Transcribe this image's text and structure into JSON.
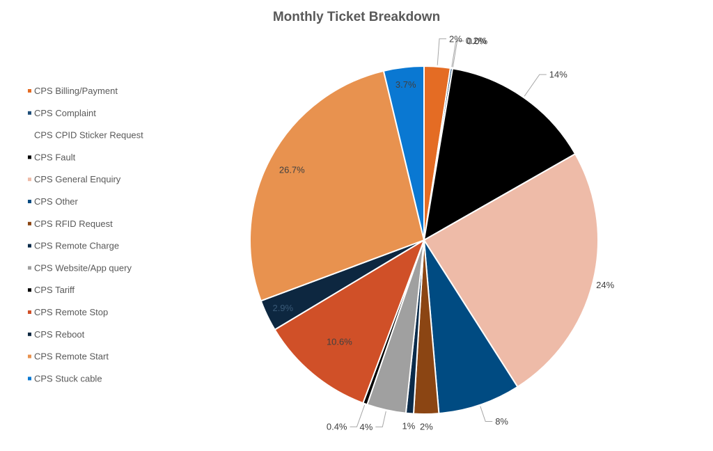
{
  "chart_data": {
    "type": "pie",
    "title": "Monthly Ticket Breakdown",
    "legend_position": "left",
    "slices": [
      {
        "name": "CPS Billing/Payment",
        "value": 2.4,
        "label": "2%",
        "color": "#E46C24"
      },
      {
        "name": "CPS Complaint",
        "value": 0.2,
        "label": "0.2%",
        "color": "#1F4E79"
      },
      {
        "name": "CPS CPID Sticker Request",
        "value": 0.0,
        "label": "0.0%",
        "color": "#FFFFFF"
      },
      {
        "name": "CPS Fault",
        "value": 14,
        "label": "14%",
        "color": "#000000"
      },
      {
        "name": "CPS General Enquiry",
        "value": 24,
        "label": "24%",
        "color": "#EEBBA8"
      },
      {
        "name": "CPS Other",
        "value": 7.6,
        "label": "8%",
        "color": "#004B82"
      },
      {
        "name": "CPS RFID Request",
        "value": 2.3,
        "label": "2%",
        "color": "#8B4513"
      },
      {
        "name": "CPS Remote Charge",
        "value": 0.7,
        "label": "1%",
        "color": "#0A2B4A"
      },
      {
        "name": "CPS Website/App query",
        "value": 3.6,
        "label": "4%",
        "color": "#A0A0A0"
      },
      {
        "name": "CPS Tariff",
        "value": 0.4,
        "label": "0.4%",
        "color": "#000000"
      },
      {
        "name": "CPS Remote Stop",
        "value": 10.6,
        "label": "10.6%",
        "color": "#D05028"
      },
      {
        "name": "CPS Reboot",
        "value": 2.9,
        "label": "2.9%",
        "color": "#0D2740"
      },
      {
        "name": "CPS Remote Start",
        "value": 26.7,
        "label": "26.7%",
        "color": "#E8924F"
      },
      {
        "name": "CPS Stuck cable",
        "value": 3.7,
        "label": "3.7%",
        "color": "#0A78D2"
      }
    ]
  }
}
